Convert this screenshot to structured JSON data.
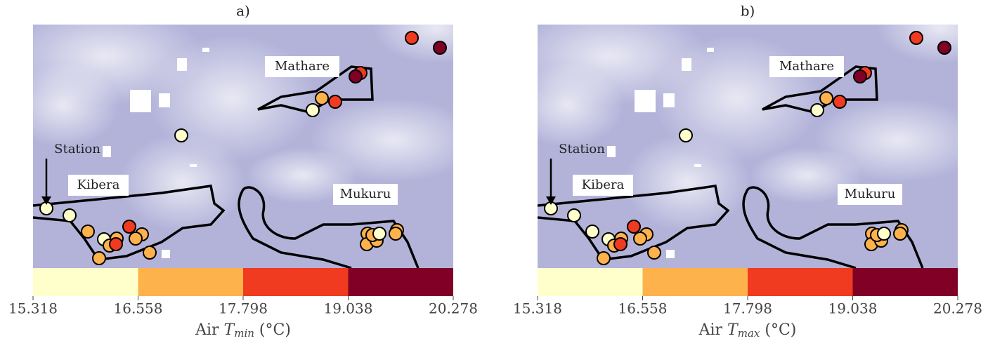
{
  "panels": [
    {
      "title": "a)",
      "places": [
        "Mathare",
        "Kibera",
        "Mukuru"
      ],
      "station": "Station",
      "colorbar": {
        "ticks": [
          15.318,
          16.558,
          17.798,
          19.038,
          20.278
        ],
        "colors": [
          "#ffffcc",
          "#feb24c",
          "#f03b20",
          "#800026"
        ]
      },
      "axis_label": {
        "text": "Air ",
        "symbol": "T",
        "subscript": "min",
        "unit": " (°C)"
      }
    },
    {
      "title": "b)",
      "places": [
        "Mathare",
        "Kibera",
        "Mukuru"
      ],
      "station": "Station",
      "colorbar": {
        "ticks": [
          15.318,
          16.558,
          17.798,
          19.038,
          20.278
        ],
        "colors": [
          "#ffffcc",
          "#feb24c",
          "#f03b20",
          "#800026"
        ]
      },
      "axis_label": {
        "text": "Air ",
        "symbol": "T",
        "subscript": "max",
        "unit": " (°C)"
      }
    }
  ]
}
